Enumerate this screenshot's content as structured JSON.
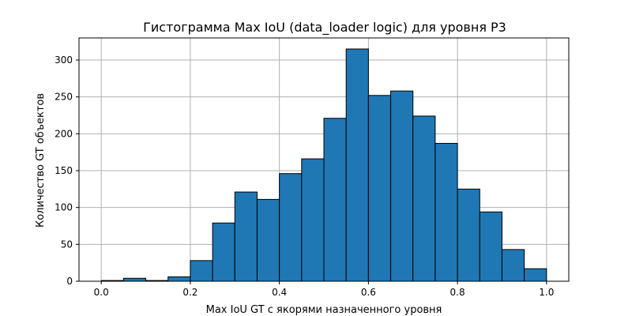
{
  "chart_data": {
    "type": "bar",
    "title": "Гистограмма Max IoU (data_loader logic) для уровня P3",
    "xlabel": "Max IoU GT с якорями назначенного уровня",
    "ylabel": "Количество GT объектов",
    "bin_edges": [
      0.0,
      0.05,
      0.1,
      0.15,
      0.2,
      0.25,
      0.3,
      0.35,
      0.4,
      0.45,
      0.5,
      0.55,
      0.6,
      0.65,
      0.7,
      0.75,
      0.8,
      0.85,
      0.9,
      0.95,
      1.0
    ],
    "values": [
      1,
      4,
      1,
      6,
      28,
      79,
      121,
      111,
      146,
      166,
      221,
      315,
      252,
      258,
      224,
      187,
      125,
      94,
      43,
      17
    ],
    "xlim": [
      -0.05,
      1.05
    ],
    "ylim": [
      0,
      330
    ],
    "xticks": [
      "0.0",
      "0.2",
      "0.4",
      "0.6",
      "0.8",
      "1.0"
    ],
    "yticks": [
      "0",
      "50",
      "100",
      "150",
      "200",
      "250",
      "300"
    ],
    "grid": true,
    "colors": {
      "bar_fill": "#1f77b4",
      "bar_edge": "#000000",
      "grid": "#b0b0b0"
    }
  }
}
